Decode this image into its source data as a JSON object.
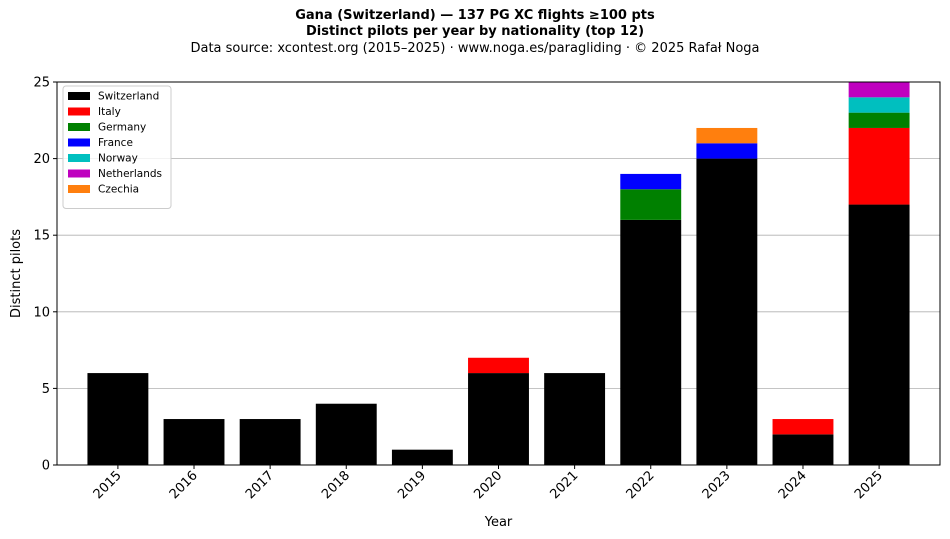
{
  "title_line1": "Gana (Switzerland)  —  137 PG XC flights ≥100 pts",
  "title_line2": "Distinct pilots per year by nationality (top 12)",
  "subtitle": "Data source: xcontest.org (2015–2025)  ·  www.noga.es/paragliding  ·  © 2025 Rafał Noga",
  "chart_data": {
    "type": "bar",
    "stacked": true,
    "categories": [
      "2015",
      "2016",
      "2017",
      "2018",
      "2019",
      "2020",
      "2021",
      "2022",
      "2023",
      "2024",
      "2025"
    ],
    "series": [
      {
        "name": "Switzerland",
        "color": "#000000",
        "values": [
          6,
          3,
          3,
          4,
          1,
          6,
          6,
          16,
          20,
          2,
          17
        ]
      },
      {
        "name": "Italy",
        "color": "#ff0000",
        "values": [
          0,
          0,
          0,
          0,
          0,
          1,
          0,
          0,
          0,
          1,
          5
        ]
      },
      {
        "name": "Germany",
        "color": "#008000",
        "values": [
          0,
          0,
          0,
          0,
          0,
          0,
          0,
          2,
          0,
          0,
          1
        ]
      },
      {
        "name": "France",
        "color": "#0000ff",
        "values": [
          0,
          0,
          0,
          0,
          0,
          0,
          0,
          1,
          1,
          0,
          0
        ]
      },
      {
        "name": "Norway",
        "color": "#00bfbf",
        "values": [
          0,
          0,
          0,
          0,
          0,
          0,
          0,
          0,
          0,
          0,
          1
        ]
      },
      {
        "name": "Netherlands",
        "color": "#bf00bf",
        "values": [
          0,
          0,
          0,
          0,
          0,
          0,
          0,
          0,
          0,
          0,
          1
        ]
      },
      {
        "name": "Czechia",
        "color": "#ff7f0e",
        "values": [
          0,
          0,
          0,
          0,
          0,
          0,
          0,
          0,
          1,
          0,
          0
        ]
      }
    ],
    "xlabel": "Year",
    "ylabel": "Distinct pilots",
    "ylim": [
      0,
      25
    ],
    "yticks": [
      0,
      5,
      10,
      15,
      20,
      25
    ],
    "grid": "y",
    "legend_position": "top-left"
  }
}
